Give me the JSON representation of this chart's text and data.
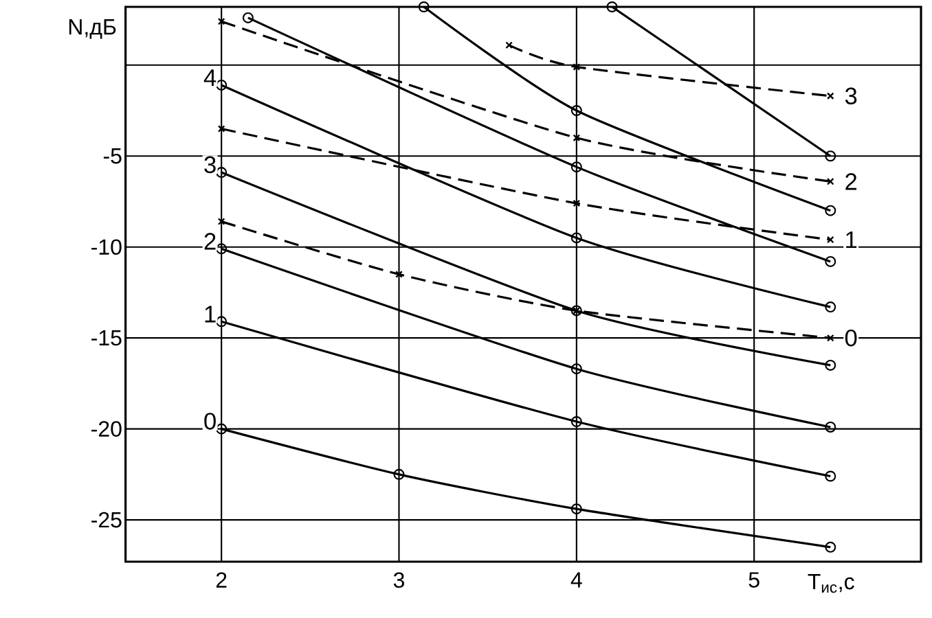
{
  "chart_data": {
    "type": "line",
    "xlabel": "T$_{ис}$,с",
    "ylabel": "N,дБ",
    "xlim": [
      1.46,
      5.94
    ],
    "ylim": [
      -27.3,
      3.2
    ],
    "xticks": [
      2,
      3,
      4,
      5
    ],
    "yticks": [
      -25,
      -20,
      -15,
      -10,
      -5,
      {
        "value": 0,
        "label": null
      }
    ],
    "grid": true,
    "marker": "circle",
    "line_style": "solid",
    "series": [
      {
        "name": "0",
        "color": "#000000",
        "x": [
          2,
          3,
          4,
          5.43
        ],
        "values": [
          -20.0,
          -22.5,
          -24.4,
          -26.5
        ]
      },
      {
        "name": "1",
        "color": "#000000",
        "x": [
          2,
          4,
          5.43
        ],
        "values": [
          -14.1,
          -19.6,
          -22.6
        ]
      },
      {
        "name": "2",
        "color": "#000000",
        "x": [
          2,
          4,
          5.43
        ],
        "values": [
          -10.1,
          -16.7,
          -19.9
        ]
      },
      {
        "name": "3",
        "color": "#000000",
        "x": [
          2,
          4,
          5.43
        ],
        "values": [
          -5.9,
          -13.5,
          -16.5
        ]
      },
      {
        "name": "4",
        "color": "#000000",
        "x": [
          2,
          4,
          5.43
        ],
        "values": [
          -1.1,
          -9.5,
          -13.3
        ]
      },
      {
        "color": "#000000",
        "x": [
          2.15,
          4,
          5.43
        ],
        "values": [
          2.6,
          -5.6,
          -10.8
        ]
      },
      {
        "color": "#000000",
        "x": [
          3.14,
          4,
          5.43
        ],
        "values": [
          3.2,
          -2.5,
          -8.0
        ]
      },
      {
        "color": "#000000",
        "x": [
          4.2,
          5.43
        ],
        "values": [
          3.2,
          -5.0
        ]
      },
      {
        "name": "0",
        "color": "#000000",
        "line_style": "dashed",
        "marker": "cross",
        "x": [
          2,
          3,
          4,
          5.43
        ],
        "values": [
          -8.6,
          -11.5,
          -13.5,
          -15.0
        ]
      },
      {
        "name": "1",
        "color": "#000000",
        "line_style": "dashed",
        "marker": "cross",
        "x": [
          2,
          4,
          5.43
        ],
        "values": [
          -3.5,
          -7.6,
          -9.6
        ]
      },
      {
        "name": "2",
        "color": "#000000",
        "line_style": "dashed",
        "marker": "cross",
        "x": [
          2,
          4,
          5.43
        ],
        "values": [
          2.4,
          -4.0,
          -6.4
        ]
      },
      {
        "name": "3",
        "color": "#000000",
        "line_style": "dashed",
        "marker": "cross",
        "x": [
          3.62,
          4,
          5.43
        ],
        "values": [
          1.1,
          -0.1,
          -1.7
        ]
      }
    ]
  }
}
